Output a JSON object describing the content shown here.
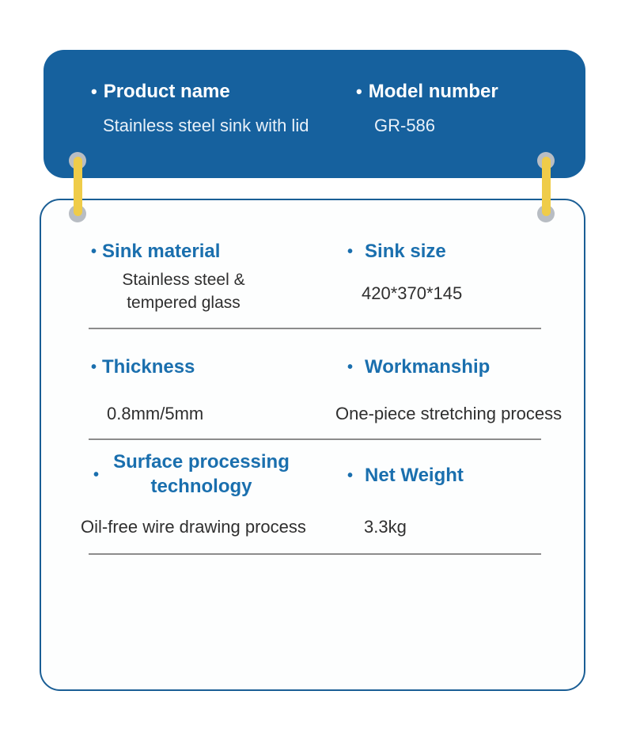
{
  "bullet": "•",
  "header": {
    "product": {
      "label": "Product name",
      "value": "Stainless steel sink with lid"
    },
    "model": {
      "label": "Model number",
      "value": "GR-586"
    }
  },
  "specs": {
    "row1": {
      "left": {
        "label": "Sink material",
        "value": "Stainless steel &\ntempered glass"
      },
      "right": {
        "label": "Sink size",
        "value": "420*370*145"
      }
    },
    "row2": {
      "left": {
        "label": "Thickness",
        "value": "0.8mm/5mm"
      },
      "right": {
        "label": "Workmanship",
        "value": "One-piece stretching process"
      }
    },
    "row3": {
      "left": {
        "label": "Surface processing technology",
        "value": "Oil-free wire drawing process"
      },
      "right": {
        "label": "Net Weight",
        "value": "3.3kg"
      }
    }
  },
  "colors": {
    "header_bg": "#16619e",
    "card_border": "#1a5e95",
    "label_blue": "#1a6fae",
    "value_dark": "#2f2f2f",
    "divider_gray": "#8c8c8c",
    "strap_yellow": "#efcc49",
    "pin_gray": "#b8bdc3"
  }
}
